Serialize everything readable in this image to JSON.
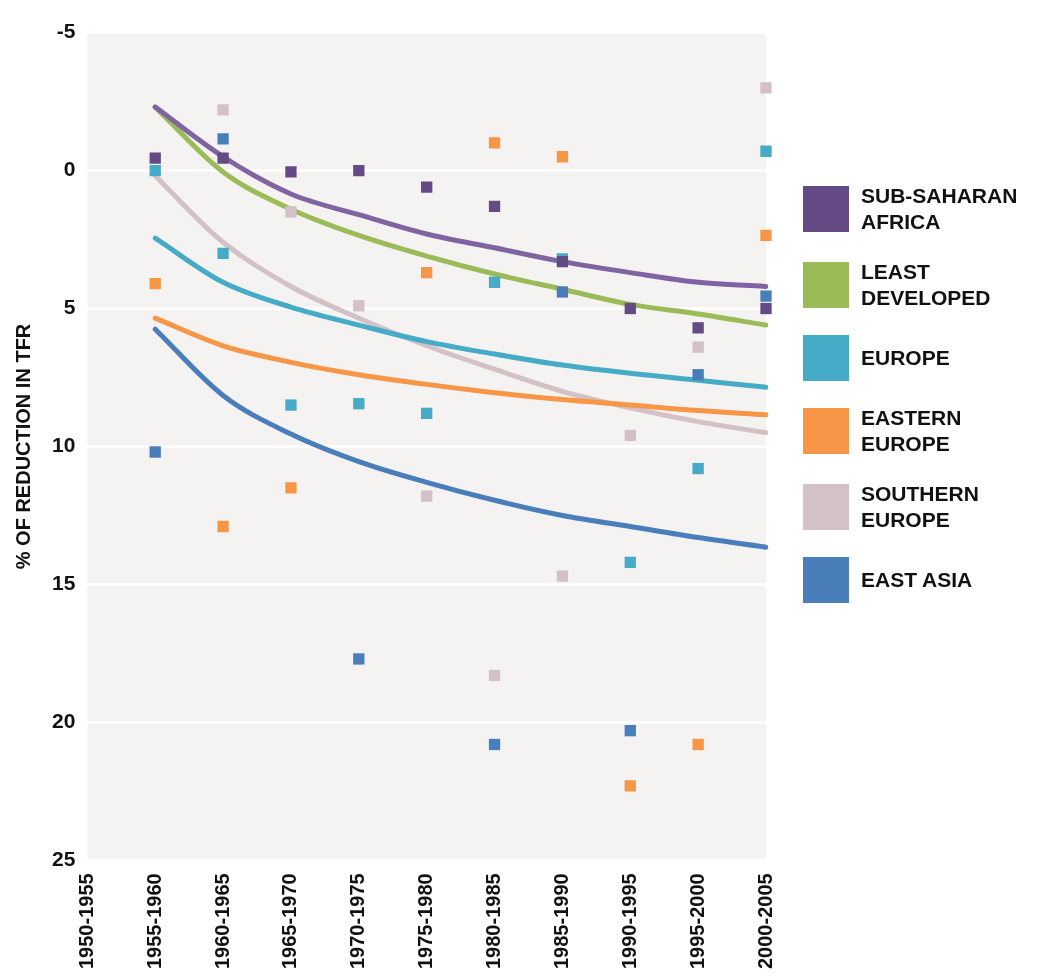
{
  "chart_data": {
    "type": "scatter",
    "ylabel": "% OF REDUCTION IN TFR",
    "categories": [
      "1950-1955",
      "1955-1960",
      "1960-1965",
      "1965-1970",
      "1970-1975",
      "1975-1980",
      "1980-1985",
      "1985-1990",
      "1990-1995",
      "1995-2000",
      "2000-2005"
    ],
    "ylim": [
      25,
      -5
    ],
    "yticks": [
      -5,
      0,
      5,
      10,
      15,
      20,
      25
    ],
    "grid": "y",
    "legend": "right",
    "marker": "square",
    "line_style": "solid",
    "series": [
      {
        "type": "line",
        "marker": "none",
        "color": "#8064a2",
        "values": [
          null,
          -2.3,
          -0.5,
          0.85,
          1.6,
          2.3,
          2.8,
          3.3,
          3.7,
          4.05,
          4.2
        ]
      },
      {
        "name": "SUB-SAHARAN AFRICA",
        "color": "#654b85",
        "values": [
          null,
          -0.45,
          -0.45,
          0.05,
          0,
          0.6,
          1.3,
          3.3,
          5.0,
          5.7,
          5.0
        ]
      },
      {
        "type": "line",
        "marker": "none",
        "name": "LEAST DEVELOPED",
        "color": "#9bbb59",
        "values": [
          null,
          -2.3,
          0.05,
          1.4,
          2.35,
          3.1,
          3.75,
          4.3,
          4.85,
          5.2,
          5.6
        ]
      },
      {
        "type": "line",
        "marker": "none",
        "color": "#46abc6",
        "values": [
          null,
          2.45,
          4.05,
          4.95,
          5.6,
          6.2,
          6.65,
          7.05,
          7.35,
          7.6,
          7.85
        ]
      },
      {
        "type": "line",
        "marker": "none",
        "color": "#f79646",
        "values": [
          null,
          5.35,
          6.35,
          6.95,
          7.4,
          7.75,
          8.05,
          8.3,
          8.5,
          8.7,
          8.85
        ]
      },
      {
        "type": "line",
        "marker": "none",
        "color": "#d3c1c7",
        "values": [
          null,
          0.2,
          2.6,
          4.2,
          5.35,
          6.35,
          7.2,
          8.0,
          8.6,
          9.1,
          9.5
        ]
      },
      {
        "type": "line",
        "marker": "none",
        "color": "#4a7ebb",
        "values": [
          null,
          5.75,
          8.15,
          9.55,
          10.55,
          11.3,
          11.95,
          12.5,
          12.9,
          13.3,
          13.65
        ]
      },
      {
        "name": "EUROPE",
        "color": "#46abc6",
        "values": [
          null,
          0,
          3.0,
          8.5,
          8.45,
          8.8,
          4.05,
          3.2,
          14.2,
          10.8,
          -0.7
        ]
      },
      {
        "name": "EASTERN EUROPE",
        "color": "#f79646",
        "values": [
          null,
          4.1,
          12.9,
          11.5,
          null,
          3.7,
          -1.0,
          -0.5,
          22.3,
          20.8,
          2.35
        ]
      },
      {
        "name": "SOUTHERN EUROPE",
        "color": "#d3c1c7",
        "values": [
          null,
          null,
          -2.2,
          1.5,
          4.9,
          11.8,
          18.3,
          14.7,
          9.6,
          6.4,
          -3.0
        ]
      },
      {
        "name": "EAST ASIA",
        "color": "#4a7ebb",
        "values": [
          null,
          10.2,
          -1.15,
          null,
          17.7,
          null,
          20.8,
          4.4,
          20.3,
          7.4,
          4.55
        ]
      }
    ]
  }
}
